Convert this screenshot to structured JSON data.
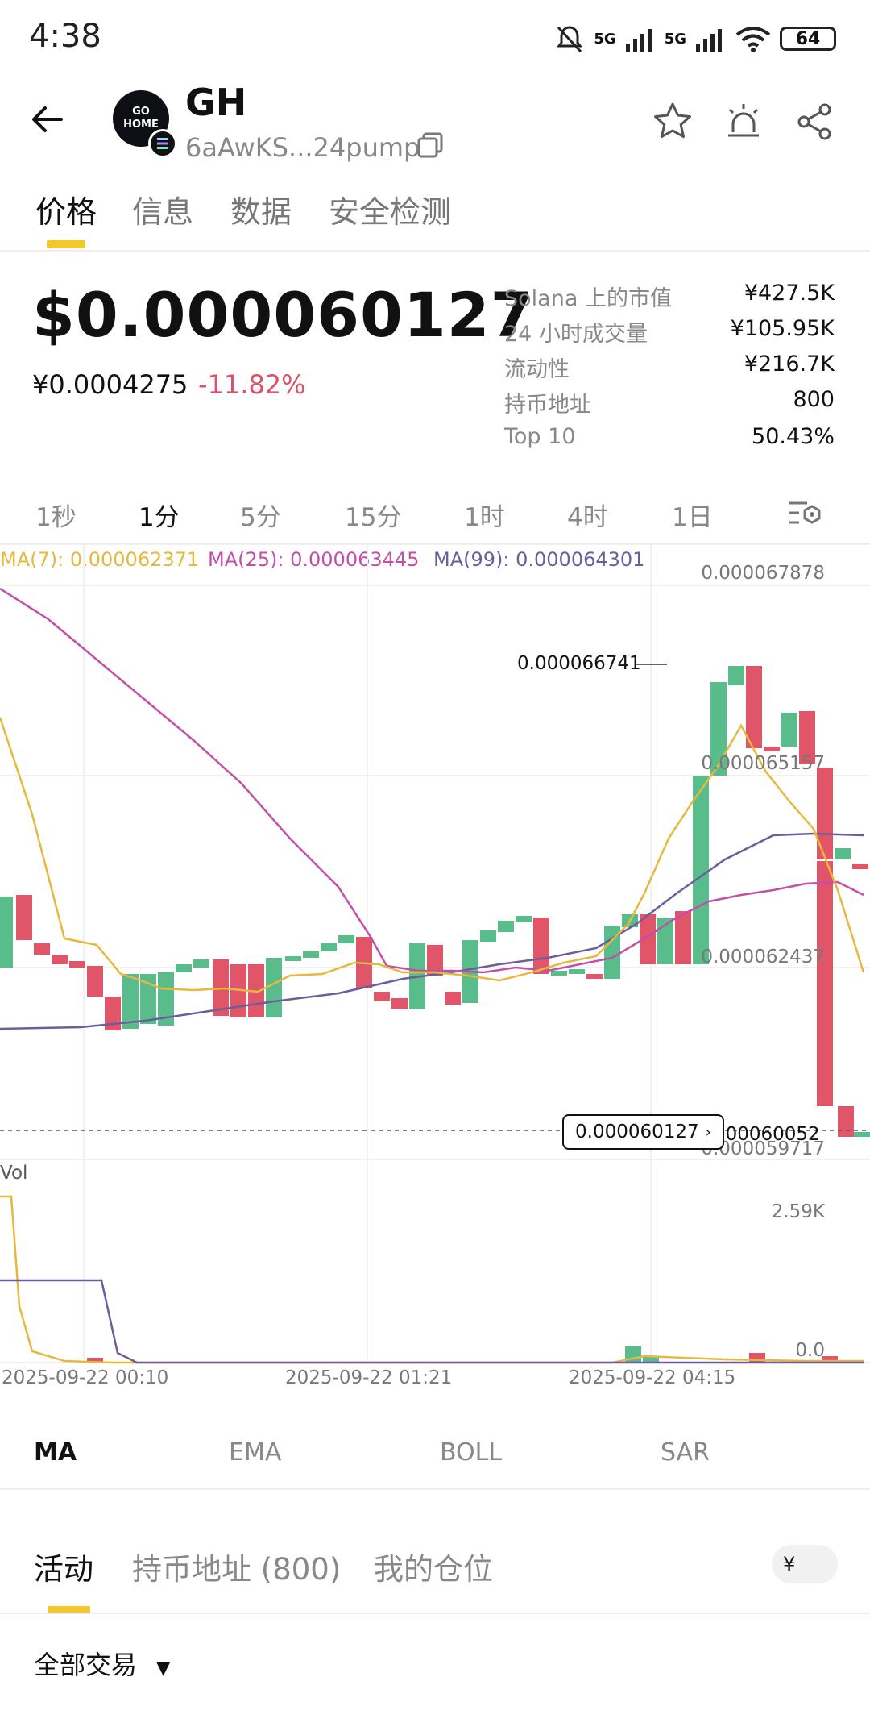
{
  "status_bar": {
    "time": "4:38",
    "network1": "5G",
    "network2": "5G",
    "battery": "64"
  },
  "token": {
    "name": "GH",
    "address": "6aAwKS...24pump",
    "avatar_text": "GO HOME"
  },
  "tabs": [
    {
      "label": "价格",
      "active": true
    },
    {
      "label": "信息",
      "active": false
    },
    {
      "label": "数据",
      "active": false
    },
    {
      "label": "安全检测",
      "active": false
    }
  ],
  "price": {
    "usd": "$0.000060127",
    "cny": "¥0.0004275",
    "change": "-11.82%"
  },
  "stats": [
    {
      "label": "Solana 上的市值",
      "value": "¥427.5K"
    },
    {
      "label": "24 小时成交量",
      "value": "¥105.95K"
    },
    {
      "label": "流动性",
      "value": "¥216.7K"
    },
    {
      "label": "持币地址",
      "value": "800"
    },
    {
      "label": "Top 10",
      "value": "50.43%"
    }
  ],
  "intervals": [
    {
      "label": "1秒",
      "active": false
    },
    {
      "label": "1分",
      "active": true
    },
    {
      "label": "5分",
      "active": false
    },
    {
      "label": "15分",
      "active": false
    },
    {
      "label": "1时",
      "active": false
    },
    {
      "label": "4时",
      "active": false
    },
    {
      "label": "1日",
      "active": false
    }
  ],
  "chart": {
    "ma7": "MA(7): 0.000062371",
    "ma25": "MA(25): 0.000063445",
    "ma99": "MA(99): 0.000064301",
    "y_labels": [
      "0.000067878",
      "0.000065157",
      "0.000062437",
      "0.000059717"
    ],
    "high_label": "0.000066741",
    "last_low_label": "0.000060052",
    "current_price_tag": "0.000060127",
    "vol_title": "Vol",
    "vol_max": "2.59K",
    "vol_min": "0.0",
    "x_labels": [
      "2025-09-22 00:10",
      "2025-09-22 01:21",
      "2025-09-22 04:15"
    ],
    "colors": {
      "up": "#58bd8b",
      "down": "#e05567",
      "ma7": "#e6b93e",
      "ma25": "#c24fa8",
      "ma99": "#6f5c9b"
    }
  },
  "indicators": [
    {
      "label": "MA",
      "active": true
    },
    {
      "label": "EMA",
      "active": false
    },
    {
      "label": "BOLL",
      "active": false
    },
    {
      "label": "SAR",
      "active": false
    }
  ],
  "bottom_tabs": [
    {
      "label": "活动",
      "active": true
    },
    {
      "label": "持币地址 (800)",
      "active": false
    },
    {
      "label": "我的仓位",
      "active": false
    }
  ],
  "currency_symbol": "¥",
  "filter_label": "全部交易"
}
